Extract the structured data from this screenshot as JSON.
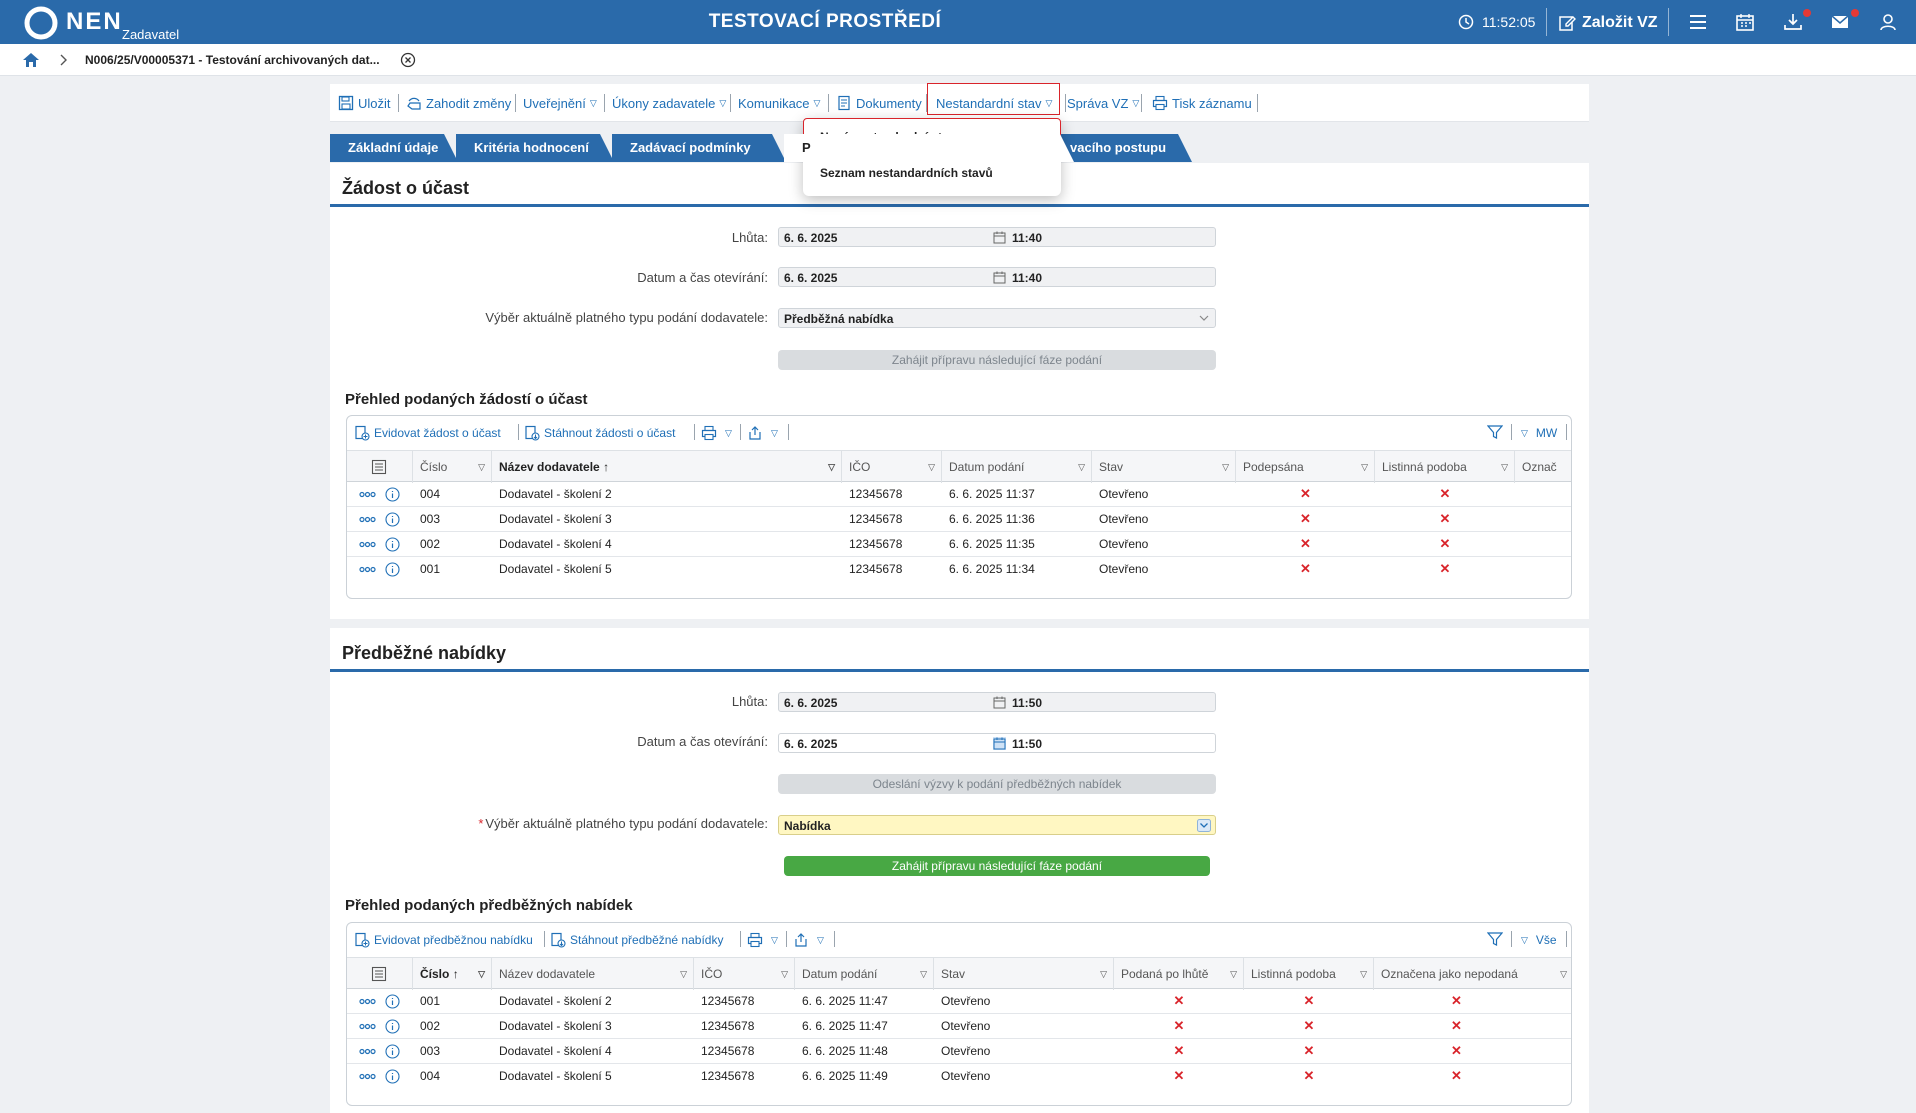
{
  "topbar": {
    "brand": "NEN",
    "brand_sub": "Zadavatel",
    "env_title": "TESTOVACÍ PROSTŘEDÍ",
    "time": "11:52:05",
    "create_label": "Založit VZ",
    "icons": [
      "clock-icon",
      "edit-icon",
      "menu-icon",
      "calendar-icon",
      "download-icon",
      "mail-icon",
      "user-icon"
    ],
    "colors": {
      "bar": "#2a6aaa",
      "badge": "#e53935"
    }
  },
  "breadcrumb": {
    "text": "N006/25/V00005371 - Testování archivovaných dat..."
  },
  "toolbar": {
    "save": "Uložit",
    "discard": "Zahodit změny",
    "publish": "Uveřejnění",
    "actions": "Úkony zadavatele",
    "communication": "Komunikace",
    "documents": "Dokumenty",
    "nonstandard": "Nestandardní stav",
    "manage": "Správa VZ",
    "print": "Tisk záznamu"
  },
  "tabs": {
    "t1": "Základní údaje",
    "t2": "Kritéria hodnocení",
    "t3": "Zadávací podmínky",
    "t4": "P",
    "t5": "vacího postupu"
  },
  "dropdown": {
    "item1": "Nový nestandardní stav",
    "item2": "Seznam nestandardních stavů"
  },
  "section1": {
    "title": "Žádost o účast",
    "deadline_label": "Lhůta:",
    "deadline_date": "6. 6. 2025",
    "deadline_time": "11:40",
    "open_label": "Datum a čas otevírání:",
    "open_date": "6. 6. 2025",
    "open_time": "11:40",
    "type_label": "Výběr aktuálně platného typu podání dodavatele:",
    "type_value": "Předběžná nabídka",
    "next_phase": "Zahájit přípravu následující fáze podání",
    "grid_title": "Přehled podaných žádostí o účast",
    "grid_toolbar": {
      "add": "Evidovat žádost o účast",
      "download": "Stáhnout žádosti o účast",
      "view": "MW"
    },
    "columns": [
      "Číslo",
      "Název dodavatele",
      "IČO",
      "Datum podání",
      "Stav",
      "Podepsána",
      "Listinná podoba",
      "Označ"
    ],
    "rows": [
      {
        "cislo": "004",
        "nazev": "Dodavatel - školení 2",
        "ico": "12345678",
        "datum": "6. 6. 2025 11:37",
        "stav": "Otevřeno",
        "podepsana": "✕",
        "listinna": "✕"
      },
      {
        "cislo": "003",
        "nazev": "Dodavatel - školení 3",
        "ico": "12345678",
        "datum": "6. 6. 2025 11:36",
        "stav": "Otevřeno",
        "podepsana": "✕",
        "listinna": "✕"
      },
      {
        "cislo": "002",
        "nazev": "Dodavatel - školení 4",
        "ico": "12345678",
        "datum": "6. 6. 2025 11:35",
        "stav": "Otevřeno",
        "podepsana": "✕",
        "listinna": "✕"
      },
      {
        "cislo": "001",
        "nazev": "Dodavatel - školení 5",
        "ico": "12345678",
        "datum": "6. 6. 2025 11:34",
        "stav": "Otevřeno",
        "podepsana": "✕",
        "listinna": "✕"
      }
    ]
  },
  "section2": {
    "title": "Předběžné nabídky",
    "deadline_label": "Lhůta:",
    "deadline_date": "6. 6. 2025",
    "deadline_time": "11:50",
    "open_label": "Datum a čas otevírání:",
    "open_date": "6. 6. 2025",
    "open_time": "11:50",
    "invite_button": "Odeslání výzvy k podání předběžných nabídek",
    "type_label": "Výběr aktuálně platného typu podání dodavatele:",
    "type_required": "*",
    "type_value": "Nabídka",
    "next_phase": "Zahájit přípravu následující fáze podání",
    "grid_title": "Přehled podaných předběžných nabídek",
    "grid_toolbar": {
      "add": "Evidovat předběžnou nabídku",
      "download": "Stáhnout předběžné nabídky",
      "view": "Vše"
    },
    "columns": [
      "Číslo",
      "Název dodavatele",
      "IČO",
      "Datum podání",
      "Stav",
      "Podaná po lhůtě",
      "Listinná podoba",
      "Označena jako nepodaná"
    ],
    "rows": [
      {
        "cislo": "001",
        "nazev": "Dodavatel - školení 2",
        "ico": "12345678",
        "datum": "6. 6. 2025 11:47",
        "stav": "Otevřeno",
        "po_lhute": "✕",
        "listinna": "✕",
        "nepodana": "✕"
      },
      {
        "cislo": "002",
        "nazev": "Dodavatel - školení 3",
        "ico": "12345678",
        "datum": "6. 6. 2025 11:47",
        "stav": "Otevřeno",
        "po_lhute": "✕",
        "listinna": "✕",
        "nepodana": "✕"
      },
      {
        "cislo": "003",
        "nazev": "Dodavatel - školení 4",
        "ico": "12345678",
        "datum": "6. 6. 2025 11:48",
        "stav": "Otevřeno",
        "po_lhute": "✕",
        "listinna": "✕",
        "nepodana": "✕"
      },
      {
        "cislo": "004",
        "nazev": "Dodavatel - školení 5",
        "ico": "12345678",
        "datum": "6. 6. 2025 11:49",
        "stav": "Otevřeno",
        "po_lhute": "✕",
        "listinna": "✕",
        "nepodana": "✕"
      }
    ]
  }
}
